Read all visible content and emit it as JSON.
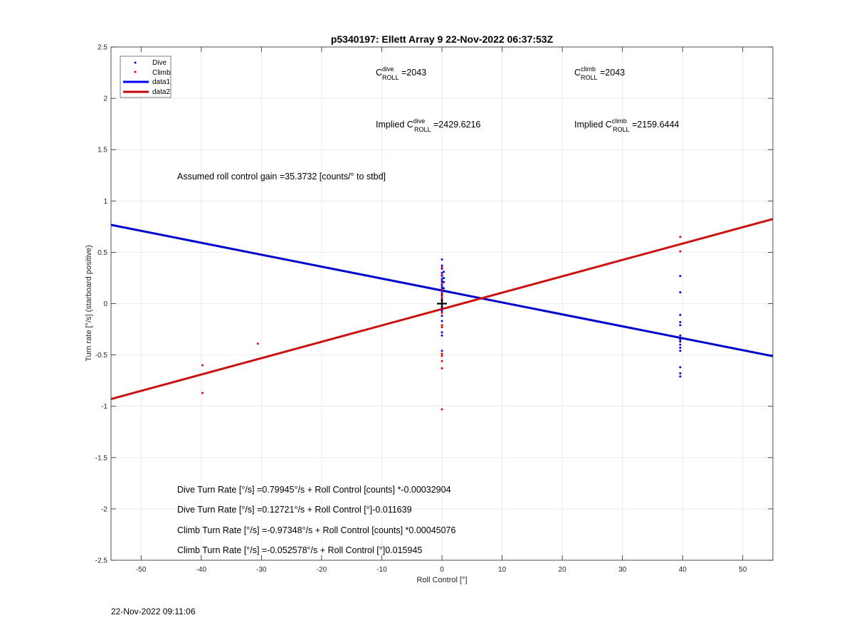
{
  "chart_data": {
    "type": "scatter",
    "title": "p5340197: Ellett Array 9 22-Nov-2022 06:37:53Z",
    "xlabel": "Roll Control [°]",
    "ylabel": "Turn rate [°/s] (starboard positive)",
    "xlim": [
      -55,
      55
    ],
    "ylim": [
      -2.5,
      2.5
    ],
    "xticks": [
      -50,
      -40,
      -30,
      -20,
      -10,
      0,
      10,
      20,
      30,
      40,
      50
    ],
    "yticks": [
      -2.5,
      -2,
      -1.5,
      -1,
      -0.5,
      0,
      0.5,
      1,
      1.5,
      2,
      2.5
    ],
    "xtick_labels": [
      "-50",
      "-40",
      "-30",
      "-20",
      "-10",
      "0",
      "10",
      "20",
      "30",
      "40",
      "50"
    ],
    "ytick_labels": [
      "-2.5",
      "-2",
      "-1.5",
      "-1",
      "-0.5",
      "0",
      "0.5",
      "1",
      "1.5",
      "2",
      "2.5"
    ],
    "grid": true,
    "legend_position": "top-left",
    "series": [
      {
        "name": "Dive",
        "kind": "points",
        "color": "#0000ff",
        "points": [
          [
            0,
            0.43
          ],
          [
            0,
            0.37
          ],
          [
            0,
            0.34
          ],
          [
            0,
            0.3
          ],
          [
            0,
            0.27
          ],
          [
            0,
            0.24
          ],
          [
            0,
            0.22
          ],
          [
            0,
            0.2
          ],
          [
            0,
            0.18
          ],
          [
            0,
            0.16
          ],
          [
            0,
            0.14
          ],
          [
            0,
            0.12
          ],
          [
            0,
            0.1
          ],
          [
            0,
            0.08
          ],
          [
            0,
            0.06
          ],
          [
            0,
            0.03
          ],
          [
            0,
            0.0
          ],
          [
            0,
            -0.03
          ],
          [
            0,
            -0.07
          ],
          [
            0,
            -0.12
          ],
          [
            0,
            -0.17
          ],
          [
            0,
            -0.23
          ],
          [
            0,
            -0.28
          ],
          [
            0,
            -0.31
          ],
          [
            0,
            -0.46
          ],
          [
            0.3,
            0.31
          ],
          [
            0.3,
            0.25
          ],
          [
            0.3,
            0.21
          ],
          [
            0.3,
            0.15
          ],
          [
            39.6,
            0.27
          ],
          [
            39.6,
            0.11
          ],
          [
            39.6,
            -0.11
          ],
          [
            39.6,
            -0.18
          ],
          [
            39.6,
            -0.21
          ],
          [
            39.6,
            -0.31
          ],
          [
            39.6,
            -0.35
          ],
          [
            39.6,
            -0.37
          ],
          [
            39.6,
            -0.4
          ],
          [
            39.6,
            -0.43
          ],
          [
            39.6,
            -0.46
          ],
          [
            39.6,
            -0.62
          ],
          [
            39.6,
            -0.68
          ],
          [
            39.6,
            -0.71
          ]
        ]
      },
      {
        "name": "Climb",
        "kind": "points",
        "color": "#ff0000",
        "points": [
          [
            -39.8,
            -0.6
          ],
          [
            -39.8,
            -0.87
          ],
          [
            -30.6,
            -0.39
          ],
          [
            0,
            0.35
          ],
          [
            0,
            0.28
          ],
          [
            0,
            0.2
          ],
          [
            0,
            0.13
          ],
          [
            0,
            0.09
          ],
          [
            0,
            0.06
          ],
          [
            0,
            0.04
          ],
          [
            0,
            -0.09
          ],
          [
            0,
            -0.21
          ],
          [
            0,
            -0.23
          ],
          [
            0,
            -0.49
          ],
          [
            0,
            -0.51
          ],
          [
            0,
            -0.56
          ],
          [
            0,
            -0.63
          ],
          [
            0,
            -1.03
          ],
          [
            39.6,
            0.65
          ],
          [
            39.6,
            0.51
          ]
        ]
      },
      {
        "name": "data1",
        "kind": "line",
        "color": "#0000ff",
        "x": [
          -55,
          55
        ],
        "y": [
          0.767,
          -0.512
        ]
      },
      {
        "name": "data2",
        "kind": "line",
        "color": "#ff0000",
        "x": [
          -55,
          55
        ],
        "y": [
          -0.93,
          0.824
        ]
      }
    ],
    "marker": {
      "symbol": "+",
      "x": 0,
      "y": 0,
      "color": "#000000"
    },
    "annotations": {
      "c_roll_dive": {
        "C": "C",
        "sup": "dive",
        "sub": "ROLL",
        "rest": " =2043"
      },
      "c_roll_climb": {
        "C": "C",
        "sup": "climb",
        "sub": "ROLL",
        "rest": " =2043"
      },
      "implied_dive": {
        "prefix": "Implied C",
        "sup": "dive",
        "sub": "ROLL",
        "rest": " =2429.6216"
      },
      "implied_climb": {
        "prefix": "Implied C",
        "sup": "climb",
        "sub": "ROLL",
        "rest": " =2159.6444"
      },
      "gain": "Assumed roll control gain =35.3732 [counts/° to stbd]",
      "eq1": "Dive Turn Rate [°/s] =0.79945°/s + Roll Control [counts] *-0.00032904",
      "eq2": "Dive Turn Rate [°/s] =0.12721°/s + Roll Control [°]-0.011639",
      "eq3": "Climb Turn Rate [°/s] =-0.97348°/s + Roll Control [counts] *0.00045076",
      "eq4": "Climb Turn Rate [°/s] =-0.052578°/s + Roll Control [°]0.015945"
    }
  },
  "footer_timestamp": "22-Nov-2022 09:11:06"
}
